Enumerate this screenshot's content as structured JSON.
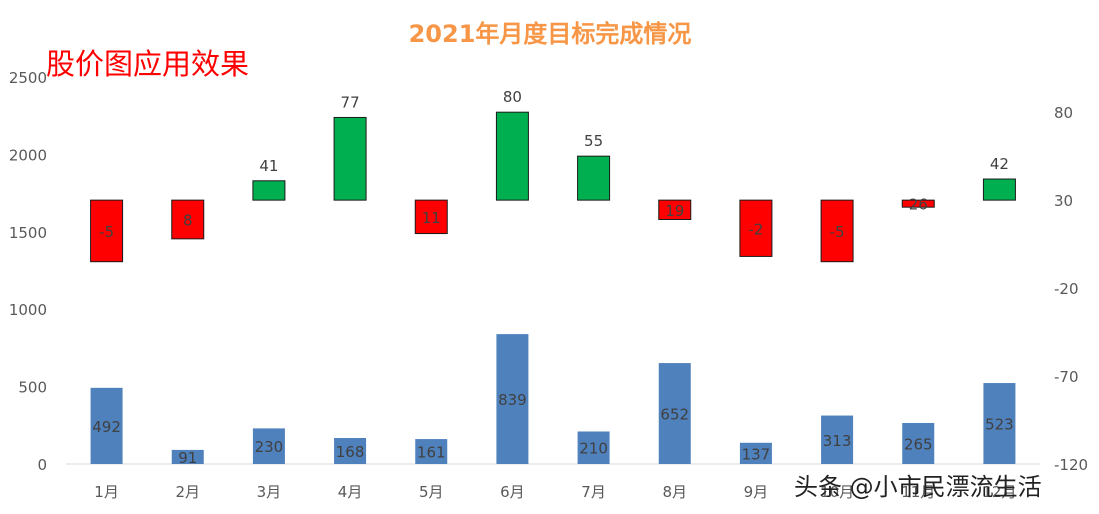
{
  "chart_data": {
    "type": "bar",
    "title": "2021年月度目标完成情况",
    "subtitle": "股价图应用效果",
    "watermark": "头条 @小市民漂流生活",
    "categories": [
      "1月",
      "2月",
      "3月",
      "4月",
      "5月",
      "6月",
      "7月",
      "8月",
      "9月",
      "10月",
      "11月",
      "12月"
    ],
    "series": [
      {
        "type": "bar",
        "axis": "left",
        "color": "#4f81bd",
        "values": [
          492,
          91,
          230,
          168,
          161,
          839,
          210,
          652,
          137,
          313,
          265,
          523
        ],
        "labels": [
          "492",
          "91",
          "230",
          "168",
          "161",
          "839",
          "210",
          "652",
          "137",
          "313",
          "265",
          "523"
        ]
      },
      {
        "type": "candlestick",
        "axis": "right",
        "base": 30,
        "up_color": "#00b050",
        "down_color": "#ff0000",
        "values": [
          -5,
          8,
          41,
          77,
          11,
          80,
          55,
          19,
          -2,
          -5,
          26,
          42
        ],
        "labels": [
          "-5",
          "8",
          "41",
          "77",
          "11",
          "80",
          "55",
          "19",
          "-2",
          "-5",
          "26",
          "42"
        ]
      }
    ],
    "y_left": {
      "min": 0,
      "max": 2500,
      "ticks": [
        "0",
        "500",
        "1000",
        "1500",
        "2000",
        "2500"
      ]
    },
    "y_right": {
      "min": -120,
      "max": 100,
      "ticks": [
        "-120",
        "-70",
        "-20",
        "30",
        "80"
      ]
    },
    "title_color": "#f79646",
    "subtitle_color": "#ff0000",
    "grid": false,
    "legend": "none"
  }
}
